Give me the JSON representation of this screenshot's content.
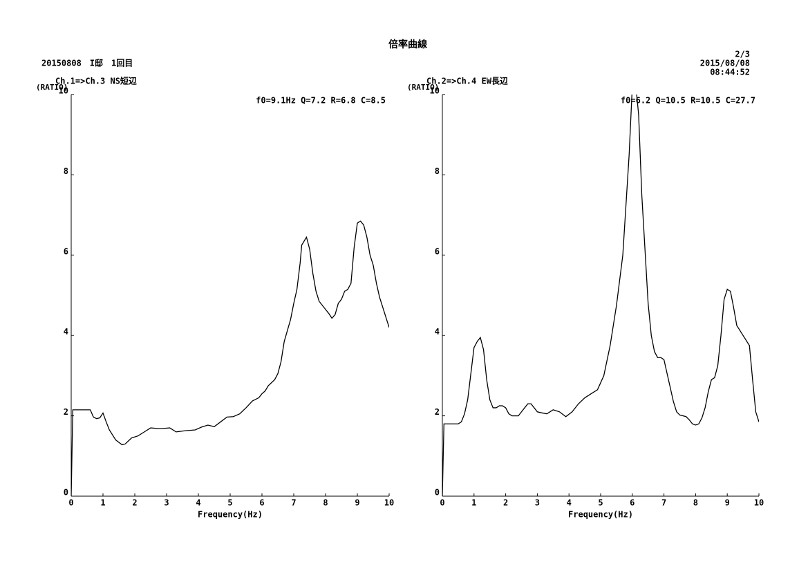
{
  "header": {
    "title": "倍率曲線",
    "left": "20150808　I邸　1回目",
    "page": "2/3",
    "date": "2015/08/08",
    "time": "08:44:52"
  },
  "chart_data": [
    {
      "type": "line",
      "title": "Ch.1=>Ch.3 NS短辺",
      "ylabel": "(RATIO)",
      "xlabel": "Frequency(Hz)",
      "annotation": "f0=9.1Hz Q=7.2 R=6.8 C=8.5",
      "color": "#000000",
      "x": [
        0,
        0.05,
        0.6,
        0.7,
        0.8,
        0.9,
        1.0,
        1.1,
        1.2,
        1.4,
        1.6,
        1.7,
        1.9,
        2.1,
        2.3,
        2.5,
        2.8,
        3.1,
        3.3,
        3.6,
        3.9,
        4.1,
        4.3,
        4.5,
        4.7,
        4.9,
        5.1,
        5.3,
        5.5,
        5.7,
        5.9,
        6.0,
        6.1,
        6.2,
        6.4,
        6.5,
        6.6,
        6.7,
        6.9,
        7.0,
        7.1,
        7.2,
        7.25,
        7.4,
        7.5,
        7.6,
        7.7,
        7.8,
        8.0,
        8.1,
        8.2,
        8.3,
        8.4,
        8.5,
        8.6,
        8.7,
        8.8,
        8.9,
        9.0,
        9.1,
        9.2,
        9.3,
        9.4,
        9.5,
        9.6,
        9.7,
        9.8,
        9.9,
        10
      ],
      "values": [
        0,
        2.15,
        2.15,
        1.97,
        1.93,
        1.95,
        2.07,
        1.85,
        1.65,
        1.4,
        1.28,
        1.3,
        1.45,
        1.5,
        1.6,
        1.7,
        1.68,
        1.7,
        1.6,
        1.63,
        1.65,
        1.72,
        1.77,
        1.73,
        1.85,
        1.97,
        1.98,
        2.05,
        2.2,
        2.37,
        2.45,
        2.55,
        2.62,
        2.75,
        2.9,
        3.05,
        3.35,
        3.85,
        4.4,
        4.8,
        5.15,
        5.8,
        6.25,
        6.45,
        6.15,
        5.55,
        5.1,
        4.85,
        4.65,
        4.55,
        4.43,
        4.52,
        4.8,
        4.9,
        5.1,
        5.15,
        5.3,
        6.2,
        6.8,
        6.85,
        6.75,
        6.45,
        6.0,
        5.75,
        5.3,
        4.95,
        4.7,
        4.45,
        4.2
      ],
      "xlim": [
        0,
        10
      ],
      "ylim": [
        0,
        10
      ],
      "xticks": [
        0,
        1,
        2,
        3,
        4,
        5,
        6,
        7,
        8,
        9,
        10
      ],
      "yticks": [
        0,
        2,
        4,
        6,
        8,
        10
      ]
    },
    {
      "type": "line",
      "title": "Ch.2=>Ch.4 EW長辺",
      "ylabel": "(RATIO)",
      "xlabel": "Frequency(Hz)",
      "annotation": "f0=6.2 Q=10.5 R=10.5 C=27.7",
      "color": "#000000",
      "x": [
        0,
        0.05,
        0.5,
        0.6,
        0.7,
        0.8,
        0.9,
        1.0,
        1.1,
        1.2,
        1.3,
        1.4,
        1.5,
        1.6,
        1.7,
        1.8,
        1.9,
        2.0,
        2.1,
        2.2,
        2.4,
        2.5,
        2.6,
        2.7,
        2.8,
        2.9,
        3.0,
        3.1,
        3.3,
        3.4,
        3.5,
        3.7,
        3.9,
        4.1,
        4.3,
        4.5,
        4.7,
        4.9,
        5.1,
        5.3,
        5.5,
        5.7,
        5.9,
        6.0,
        6.1,
        6.2,
        6.3,
        6.5,
        6.6,
        6.7,
        6.8,
        6.9,
        7.0,
        7.1,
        7.3,
        7.4,
        7.5,
        7.7,
        7.8,
        7.9,
        8.0,
        8.1,
        8.2,
        8.3,
        8.4,
        8.5,
        8.6,
        8.7,
        8.8,
        8.9,
        9.0,
        9.1,
        9.2,
        9.3,
        9.5,
        9.7,
        9.8,
        9.9,
        10
      ],
      "values": [
        0,
        1.8,
        1.8,
        1.85,
        2.05,
        2.4,
        3.05,
        3.7,
        3.85,
        3.95,
        3.65,
        2.9,
        2.4,
        2.2,
        2.2,
        2.25,
        2.25,
        2.2,
        2.05,
        2.0,
        2.0,
        2.1,
        2.2,
        2.3,
        2.3,
        2.2,
        2.1,
        2.08,
        2.05,
        2.1,
        2.15,
        2.1,
        1.98,
        2.1,
        2.3,
        2.45,
        2.55,
        2.65,
        3.0,
        3.75,
        4.75,
        6.0,
        8.5,
        10.2,
        10.3,
        9.5,
        7.5,
        4.8,
        4.0,
        3.6,
        3.45,
        3.45,
        3.4,
        3.05,
        2.35,
        2.1,
        2.02,
        1.98,
        1.9,
        1.8,
        1.77,
        1.8,
        1.95,
        2.2,
        2.6,
        2.9,
        2.95,
        3.25,
        4.0,
        4.9,
        5.15,
        5.1,
        4.7,
        4.25,
        4.0,
        3.75,
        2.9,
        2.1,
        1.85
      ],
      "xlim": [
        0,
        10
      ],
      "ylim": [
        0,
        10
      ],
      "xticks": [
        0,
        1,
        2,
        3,
        4,
        5,
        6,
        7,
        8,
        9,
        10
      ],
      "yticks": [
        0,
        2,
        4,
        6,
        8,
        10
      ]
    }
  ]
}
